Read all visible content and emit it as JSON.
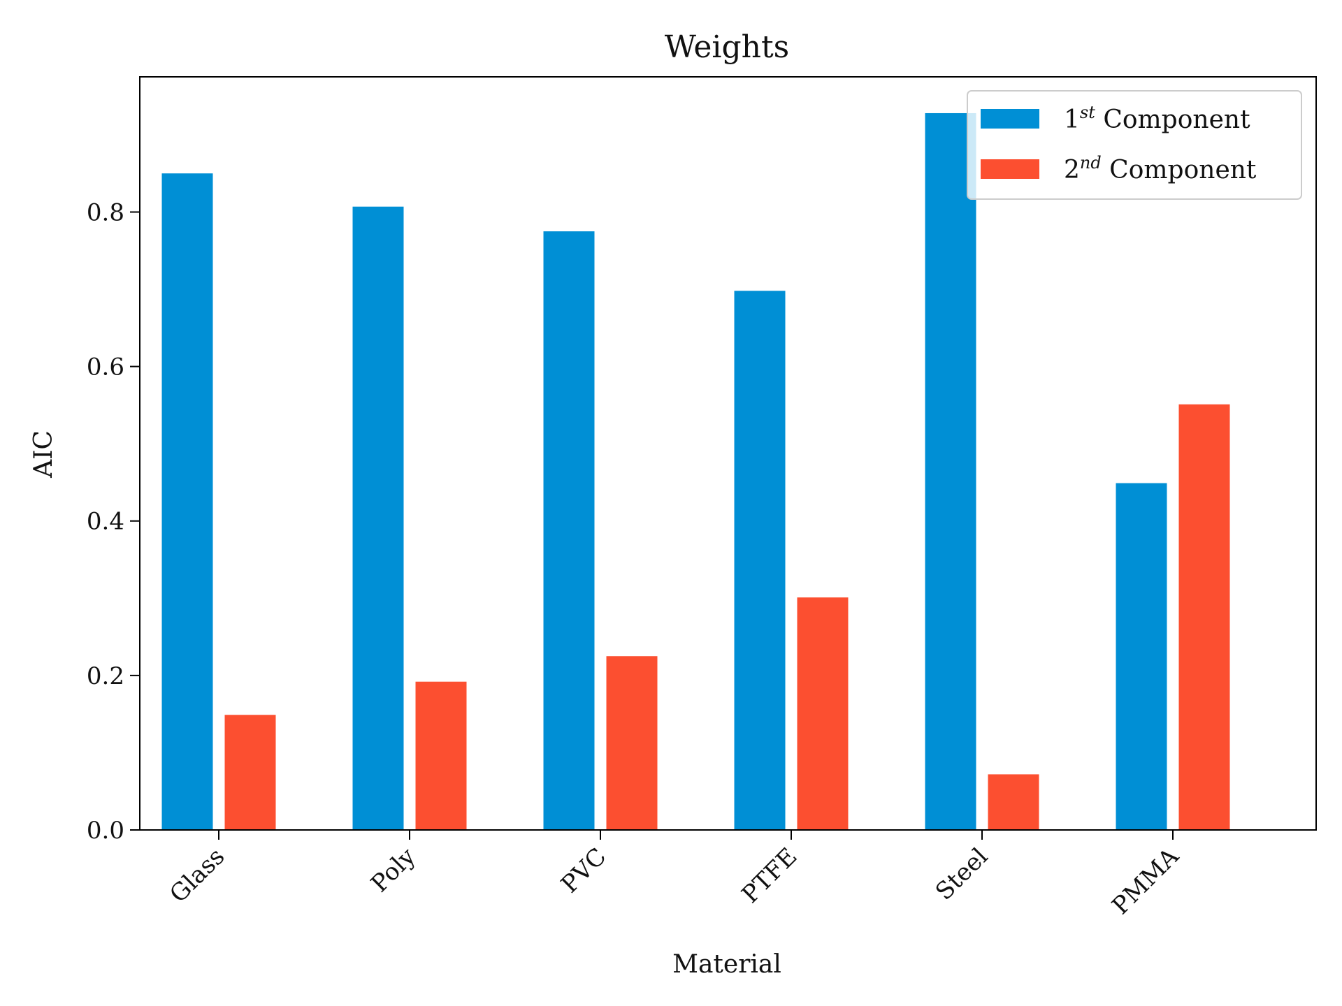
{
  "chart_data": {
    "type": "bar",
    "title": "Weights",
    "xlabel": "Material",
    "ylabel": "AIC",
    "categories": [
      "Glass",
      "Poly",
      "PVC",
      "PTFE",
      "Steel",
      "PMMA"
    ],
    "series": [
      {
        "name_base": "1",
        "name_sup": "st",
        "name_rest": " Component",
        "color": "#008fd5",
        "values": [
          0.85,
          0.807,
          0.775,
          0.698,
          0.928,
          0.449
        ]
      },
      {
        "name_base": "2",
        "name_sup": "nd",
        "name_rest": " Component",
        "color": "#fc4f30",
        "values": [
          0.149,
          0.192,
          0.225,
          0.301,
          0.072,
          0.551
        ]
      }
    ],
    "ylim": [
      0,
      0.975
    ],
    "yticks": [
      0.0,
      0.2,
      0.4,
      0.6,
      0.8
    ],
    "ytick_labels": [
      "0.0",
      "0.2",
      "0.4",
      "0.6",
      "0.8"
    ],
    "grid": false,
    "legend_position": "top-right"
  }
}
